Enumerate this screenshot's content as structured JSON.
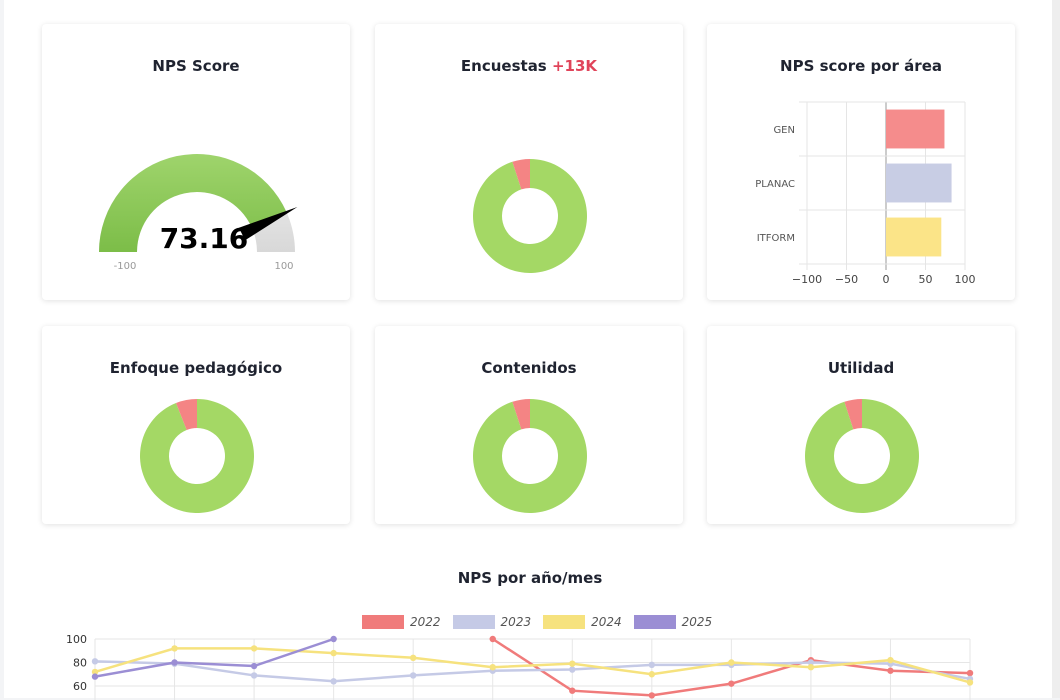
{
  "colors": {
    "green": "#a4d865",
    "red": "#f48484",
    "gauge_green": "#8ec85a",
    "gauge_gray": "#e8e8e8",
    "bar_gen": "#f58c8c",
    "bar_planac": "#c8cde4",
    "bar_itform": "#fbe488",
    "line_2022": "#f07b7b",
    "line_2023": "#c5cae6",
    "line_2024": "#f6e27e",
    "line_2025": "#9b8ed4"
  },
  "cards": {
    "nps_score": {
      "title": "NPS Score",
      "value": 73.16,
      "value_text": "73.16",
      "min_label": "-100",
      "max_label": "100",
      "needle_icon": "gauge-needle-icon"
    },
    "encuestas": {
      "title": "Encuestas",
      "accent": "+13K",
      "green_pct": 95,
      "red_pct": 5
    },
    "nps_area": {
      "title": "NPS score por área",
      "chart_data": {
        "type": "bar",
        "orientation": "horizontal",
        "categories": [
          "GEN",
          "PLANAC",
          "ITFORM"
        ],
        "values": [
          74,
          83,
          70
        ],
        "xlim": [
          -100,
          100
        ],
        "x_ticks": [
          "−100",
          "−50",
          "0",
          "50",
          "100"
        ]
      }
    },
    "enfoque": {
      "title": "Enfoque pedagógico",
      "green_pct": 94,
      "red_pct": 6
    },
    "contenidos": {
      "title": "Contenidos",
      "green_pct": 95,
      "red_pct": 5
    },
    "utilidad": {
      "title": "Utilidad",
      "green_pct": 95,
      "red_pct": 5
    }
  },
  "nps_mes": {
    "title": "NPS por año/mes",
    "chart_data": {
      "type": "line",
      "ylim": [
        50,
        100
      ],
      "y_ticks": [
        "100",
        "80",
        "60"
      ],
      "x_count": 12,
      "series": [
        {
          "name": "2022",
          "values": [
            null,
            null,
            null,
            null,
            null,
            100,
            56,
            52,
            62,
            82,
            73,
            71
          ]
        },
        {
          "name": "2023",
          "values": [
            81,
            79,
            69,
            64,
            69,
            73,
            74,
            78,
            78,
            80,
            79,
            66
          ]
        },
        {
          "name": "2024",
          "values": [
            72,
            92,
            92,
            88,
            84,
            76,
            79,
            70,
            80,
            76,
            82,
            63
          ]
        },
        {
          "name": "2025",
          "values": [
            68,
            80,
            77,
            100,
            null,
            null,
            null,
            null,
            null,
            null,
            null,
            null
          ]
        }
      ]
    }
  }
}
